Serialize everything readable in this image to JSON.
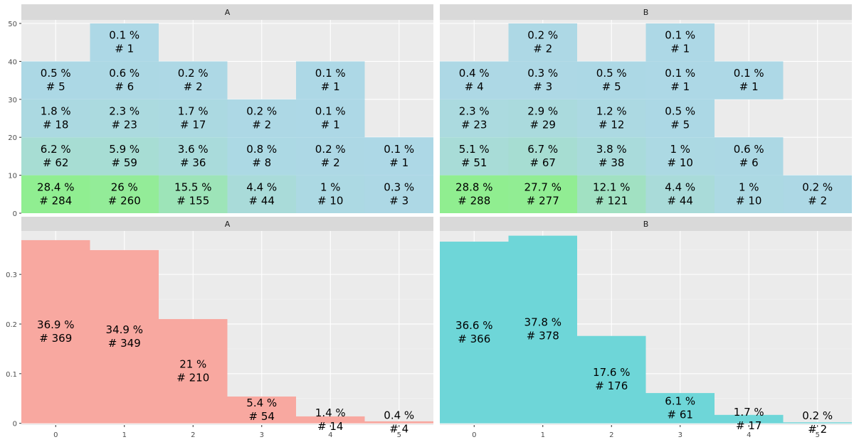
{
  "figure": {
    "description_free": true
  },
  "colors": {
    "panel_bg": "#EBEBEB",
    "strip_bg": "#D9D9D9",
    "grid_major": "#FFFFFF",
    "grid_minor": "#F4F4F4",
    "tile_low": "#ADD8E6",
    "tile_high": "#90EE90",
    "bar_A": "#F8A8A0",
    "bar_B": "#6ED6D8"
  },
  "chart_data": [
    {
      "type": "heatmap",
      "id": "top-A",
      "strip": "A",
      "x_categories": [
        "0",
        "1",
        "2",
        "3",
        "4",
        "5"
      ],
      "y_ticks": [
        "0",
        "10",
        "20",
        "30",
        "40",
        "50"
      ],
      "ylim": [
        0,
        50
      ],
      "y_bands": [
        5,
        15,
        25,
        35,
        45
      ],
      "cells": [
        {
          "x": 0,
          "y": 5,
          "pct_label": "28.4  %",
          "n_label": "#  284",
          "pct": 28.4
        },
        {
          "x": 0,
          "y": 15,
          "pct_label": "6.2  %",
          "n_label": "#  62",
          "pct": 6.2
        },
        {
          "x": 0,
          "y": 25,
          "pct_label": "1.8  %",
          "n_label": "#  18",
          "pct": 1.8
        },
        {
          "x": 0,
          "y": 35,
          "pct_label": "0.5  %",
          "n_label": "#  5",
          "pct": 0.5
        },
        {
          "x": 1,
          "y": 5,
          "pct_label": "26  %",
          "n_label": "#  260",
          "pct": 26
        },
        {
          "x": 1,
          "y": 15,
          "pct_label": "5.9  %",
          "n_label": "#  59",
          "pct": 5.9
        },
        {
          "x": 1,
          "y": 25,
          "pct_label": "2.3  %",
          "n_label": "#  23",
          "pct": 2.3
        },
        {
          "x": 1,
          "y": 35,
          "pct_label": "0.6  %",
          "n_label": "#  6",
          "pct": 0.6
        },
        {
          "x": 1,
          "y": 45,
          "pct_label": "0.1  %",
          "n_label": "#  1",
          "pct": 0.1
        },
        {
          "x": 2,
          "y": 5,
          "pct_label": "15.5  %",
          "n_label": "#  155",
          "pct": 15.5
        },
        {
          "x": 2,
          "y": 15,
          "pct_label": "3.6  %",
          "n_label": "#  36",
          "pct": 3.6
        },
        {
          "x": 2,
          "y": 25,
          "pct_label": "1.7  %",
          "n_label": "#  17",
          "pct": 1.7
        },
        {
          "x": 2,
          "y": 35,
          "pct_label": "0.2  %",
          "n_label": "#  2",
          "pct": 0.2
        },
        {
          "x": 3,
          "y": 5,
          "pct_label": "4.4  %",
          "n_label": "#  44",
          "pct": 4.4
        },
        {
          "x": 3,
          "y": 15,
          "pct_label": "0.8  %",
          "n_label": "#  8",
          "pct": 0.8
        },
        {
          "x": 3,
          "y": 25,
          "pct_label": "0.2  %",
          "n_label": "#  2",
          "pct": 0.2
        },
        {
          "x": 4,
          "y": 5,
          "pct_label": "1  %",
          "n_label": "#  10",
          "pct": 1
        },
        {
          "x": 4,
          "y": 15,
          "pct_label": "0.2  %",
          "n_label": "#  2",
          "pct": 0.2
        },
        {
          "x": 4,
          "y": 25,
          "pct_label": "0.1  %",
          "n_label": "#  1",
          "pct": 0.1
        },
        {
          "x": 4,
          "y": 35,
          "pct_label": "0.1  %",
          "n_label": "#  1",
          "pct": 0.1
        },
        {
          "x": 5,
          "y": 5,
          "pct_label": "0.3  %",
          "n_label": "#  3",
          "pct": 0.3
        },
        {
          "x": 5,
          "y": 15,
          "pct_label": "0.1  %",
          "n_label": "#  1",
          "pct": 0.1
        }
      ]
    },
    {
      "type": "heatmap",
      "id": "top-B",
      "strip": "B",
      "x_categories": [
        "0",
        "1",
        "2",
        "3",
        "4",
        "5"
      ],
      "y_ticks": [],
      "ylim": [
        0,
        50
      ],
      "y_bands": [
        5,
        15,
        25,
        35,
        45
      ],
      "cells": [
        {
          "x": 0,
          "y": 5,
          "pct_label": "28.8  %",
          "n_label": "#  288",
          "pct": 28.8
        },
        {
          "x": 0,
          "y": 15,
          "pct_label": "5.1  %",
          "n_label": "#  51",
          "pct": 5.1
        },
        {
          "x": 0,
          "y": 25,
          "pct_label": "2.3  %",
          "n_label": "#  23",
          "pct": 2.3
        },
        {
          "x": 0,
          "y": 35,
          "pct_label": "0.4  %",
          "n_label": "#  4",
          "pct": 0.4
        },
        {
          "x": 1,
          "y": 5,
          "pct_label": "27.7  %",
          "n_label": "#  277",
          "pct": 27.7
        },
        {
          "x": 1,
          "y": 15,
          "pct_label": "6.7  %",
          "n_label": "#  67",
          "pct": 6.7
        },
        {
          "x": 1,
          "y": 25,
          "pct_label": "2.9  %",
          "n_label": "#  29",
          "pct": 2.9
        },
        {
          "x": 1,
          "y": 35,
          "pct_label": "0.3  %",
          "n_label": "#  3",
          "pct": 0.3
        },
        {
          "x": 1,
          "y": 45,
          "pct_label": "0.2  %",
          "n_label": "#  2",
          "pct": 0.2
        },
        {
          "x": 2,
          "y": 5,
          "pct_label": "12.1  %",
          "n_label": "#  121",
          "pct": 12.1
        },
        {
          "x": 2,
          "y": 15,
          "pct_label": "3.8  %",
          "n_label": "#  38",
          "pct": 3.8
        },
        {
          "x": 2,
          "y": 25,
          "pct_label": "1.2  %",
          "n_label": "#  12",
          "pct": 1.2
        },
        {
          "x": 2,
          "y": 35,
          "pct_label": "0.5  %",
          "n_label": "#  5",
          "pct": 0.5
        },
        {
          "x": 3,
          "y": 5,
          "pct_label": "4.4  %",
          "n_label": "#  44",
          "pct": 4.4
        },
        {
          "x": 3,
          "y": 15,
          "pct_label": "1  %",
          "n_label": "#  10",
          "pct": 1
        },
        {
          "x": 3,
          "y": 25,
          "pct_label": "0.5  %",
          "n_label": "#  5",
          "pct": 0.5
        },
        {
          "x": 3,
          "y": 35,
          "pct_label": "0.1  %",
          "n_label": "#  1",
          "pct": 0.1
        },
        {
          "x": 3,
          "y": 45,
          "pct_label": "0.1  %",
          "n_label": "#  1",
          "pct": 0.1
        },
        {
          "x": 4,
          "y": 5,
          "pct_label": "1  %",
          "n_label": "#  10",
          "pct": 1
        },
        {
          "x": 4,
          "y": 15,
          "pct_label": "0.6  %",
          "n_label": "#  6",
          "pct": 0.6
        },
        {
          "x": 4,
          "y": 35,
          "pct_label": "0.1  %",
          "n_label": "#  1",
          "pct": 0.1
        },
        {
          "x": 5,
          "y": 5,
          "pct_label": "0.2  %",
          "n_label": "#  2",
          "pct": 0.2
        }
      ]
    },
    {
      "type": "bar",
      "id": "bottom-A",
      "strip": "A",
      "categories": [
        "0",
        "1",
        "2",
        "3",
        "4",
        "5"
      ],
      "values": [
        0.369,
        0.349,
        0.21,
        0.054,
        0.014,
        0.004
      ],
      "pct_labels": [
        "36.9  %",
        "34.9  %",
        "21  %",
        "5.4  %",
        "1.4  %",
        "0.4  %"
      ],
      "n_labels": [
        "#  369",
        "#  349",
        "#  210",
        "#  54",
        "#  14",
        "#  4"
      ],
      "y_ticks": [
        "0",
        "0.1",
        "0.2",
        "0.3"
      ],
      "ylim": [
        -0.0033,
        0.3875
      ],
      "color_key": "bar_A"
    },
    {
      "type": "bar",
      "id": "bottom-B",
      "strip": "B",
      "categories": [
        "0",
        "1",
        "2",
        "3",
        "4",
        "5"
      ],
      "values": [
        0.366,
        0.378,
        0.176,
        0.061,
        0.017,
        0.002
      ],
      "pct_labels": [
        "36.6  %",
        "37.8  %",
        "17.6  %",
        "6.1  %",
        "1.7  %",
        "0.2  %"
      ],
      "n_labels": [
        "#  366",
        "#  378",
        "#  176",
        "#  61",
        "#  17",
        "#  2"
      ],
      "y_ticks": [],
      "ylim": [
        -0.0033,
        0.3875
      ],
      "color_key": "bar_B"
    }
  ],
  "x_axis_ticks": [
    "0",
    "1",
    "2",
    "3",
    "4",
    "5"
  ]
}
